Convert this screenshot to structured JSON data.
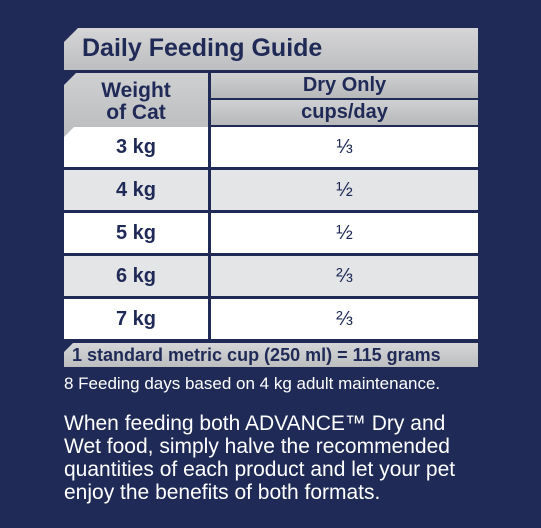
{
  "title": "Daily Feeding Guide",
  "header": {
    "weight_line1": "Weight",
    "weight_line2": "of Cat",
    "food_type": "Dry Only",
    "unit": "cups/day"
  },
  "rows": [
    {
      "weight": "3 kg",
      "amount": "⅓"
    },
    {
      "weight": "4 kg",
      "amount": "½"
    },
    {
      "weight": "5 kg",
      "amount": "½"
    },
    {
      "weight": "6 kg",
      "amount": "⅔"
    },
    {
      "weight": "7 kg",
      "amount": "⅔"
    }
  ],
  "cup_note": "1 standard metric cup (250 ml) = 115 grams",
  "feeding_note": "8 Feeding days based on 4 kg adult maintenance.",
  "paragraph": "When feeding both ADVANCE™ Dry and Wet food, simply halve the recommended quantities of each product and let your pet enjoy the benefits of both formats."
}
